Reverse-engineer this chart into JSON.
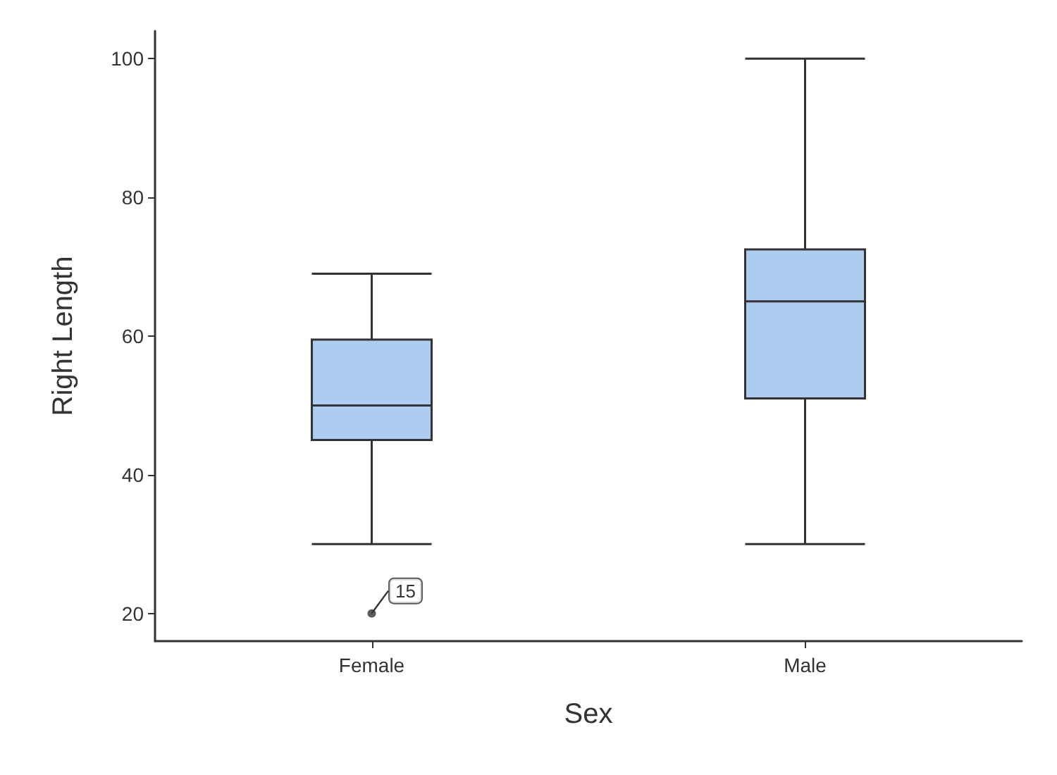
{
  "chart_data": {
    "type": "box",
    "xlabel": "Sex",
    "ylabel": "Right Length",
    "categories": [
      "Female",
      "Male"
    ],
    "boxes": [
      {
        "low": 30,
        "q1": 45,
        "median": 50,
        "q3": 59.5,
        "high": 69,
        "outliers": [
          20
        ]
      },
      {
        "low": 30,
        "q1": 51,
        "median": 65,
        "q3": 72.5,
        "high": 100
      }
    ],
    "color": "#aecbf0",
    "ylim": [
      16,
      104
    ],
    "yticks": [
      20,
      40,
      60,
      80,
      100
    ],
    "grid": false,
    "annotations": [
      "15"
    ]
  }
}
